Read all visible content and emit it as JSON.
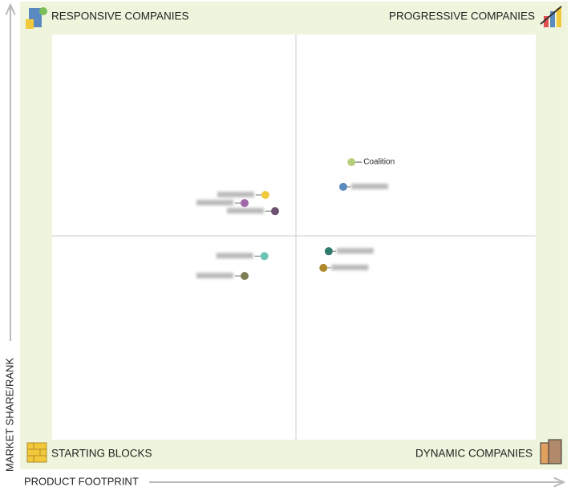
{
  "chart_data": {
    "type": "scatter",
    "quadrants": {
      "top_left": "RESPONSIVE COMPANIES",
      "top_right": "PROGRESSIVE COMPANIES",
      "bottom_left": "STARTING BLOCKS",
      "bottom_right": "DYNAMIC COMPANIES"
    },
    "x_label": "PRODUCT FOOTPRINT",
    "y_label": "MARKET SHARE/RANK",
    "xlim": [
      0,
      100
    ],
    "ylim": [
      0,
      100
    ],
    "x": [
      61.9,
      60.2,
      44.1,
      39.8,
      46.1,
      57.2,
      56.1,
      43.9,
      39.8
    ],
    "y": [
      68.5,
      62.4,
      60.4,
      58.4,
      56.4,
      46.5,
      42.4,
      45.3,
      40.4
    ],
    "colors": [
      "#b5cf7e",
      "#5b8ac0",
      "#f2c93a",
      "#a066a8",
      "#6e5070",
      "#2e7a6c",
      "#b08a2a",
      "#6cc5b0",
      "#7d7d55"
    ],
    "labels": [
      "Coalition",
      null,
      null,
      null,
      null,
      null,
      null,
      null,
      null
    ]
  }
}
